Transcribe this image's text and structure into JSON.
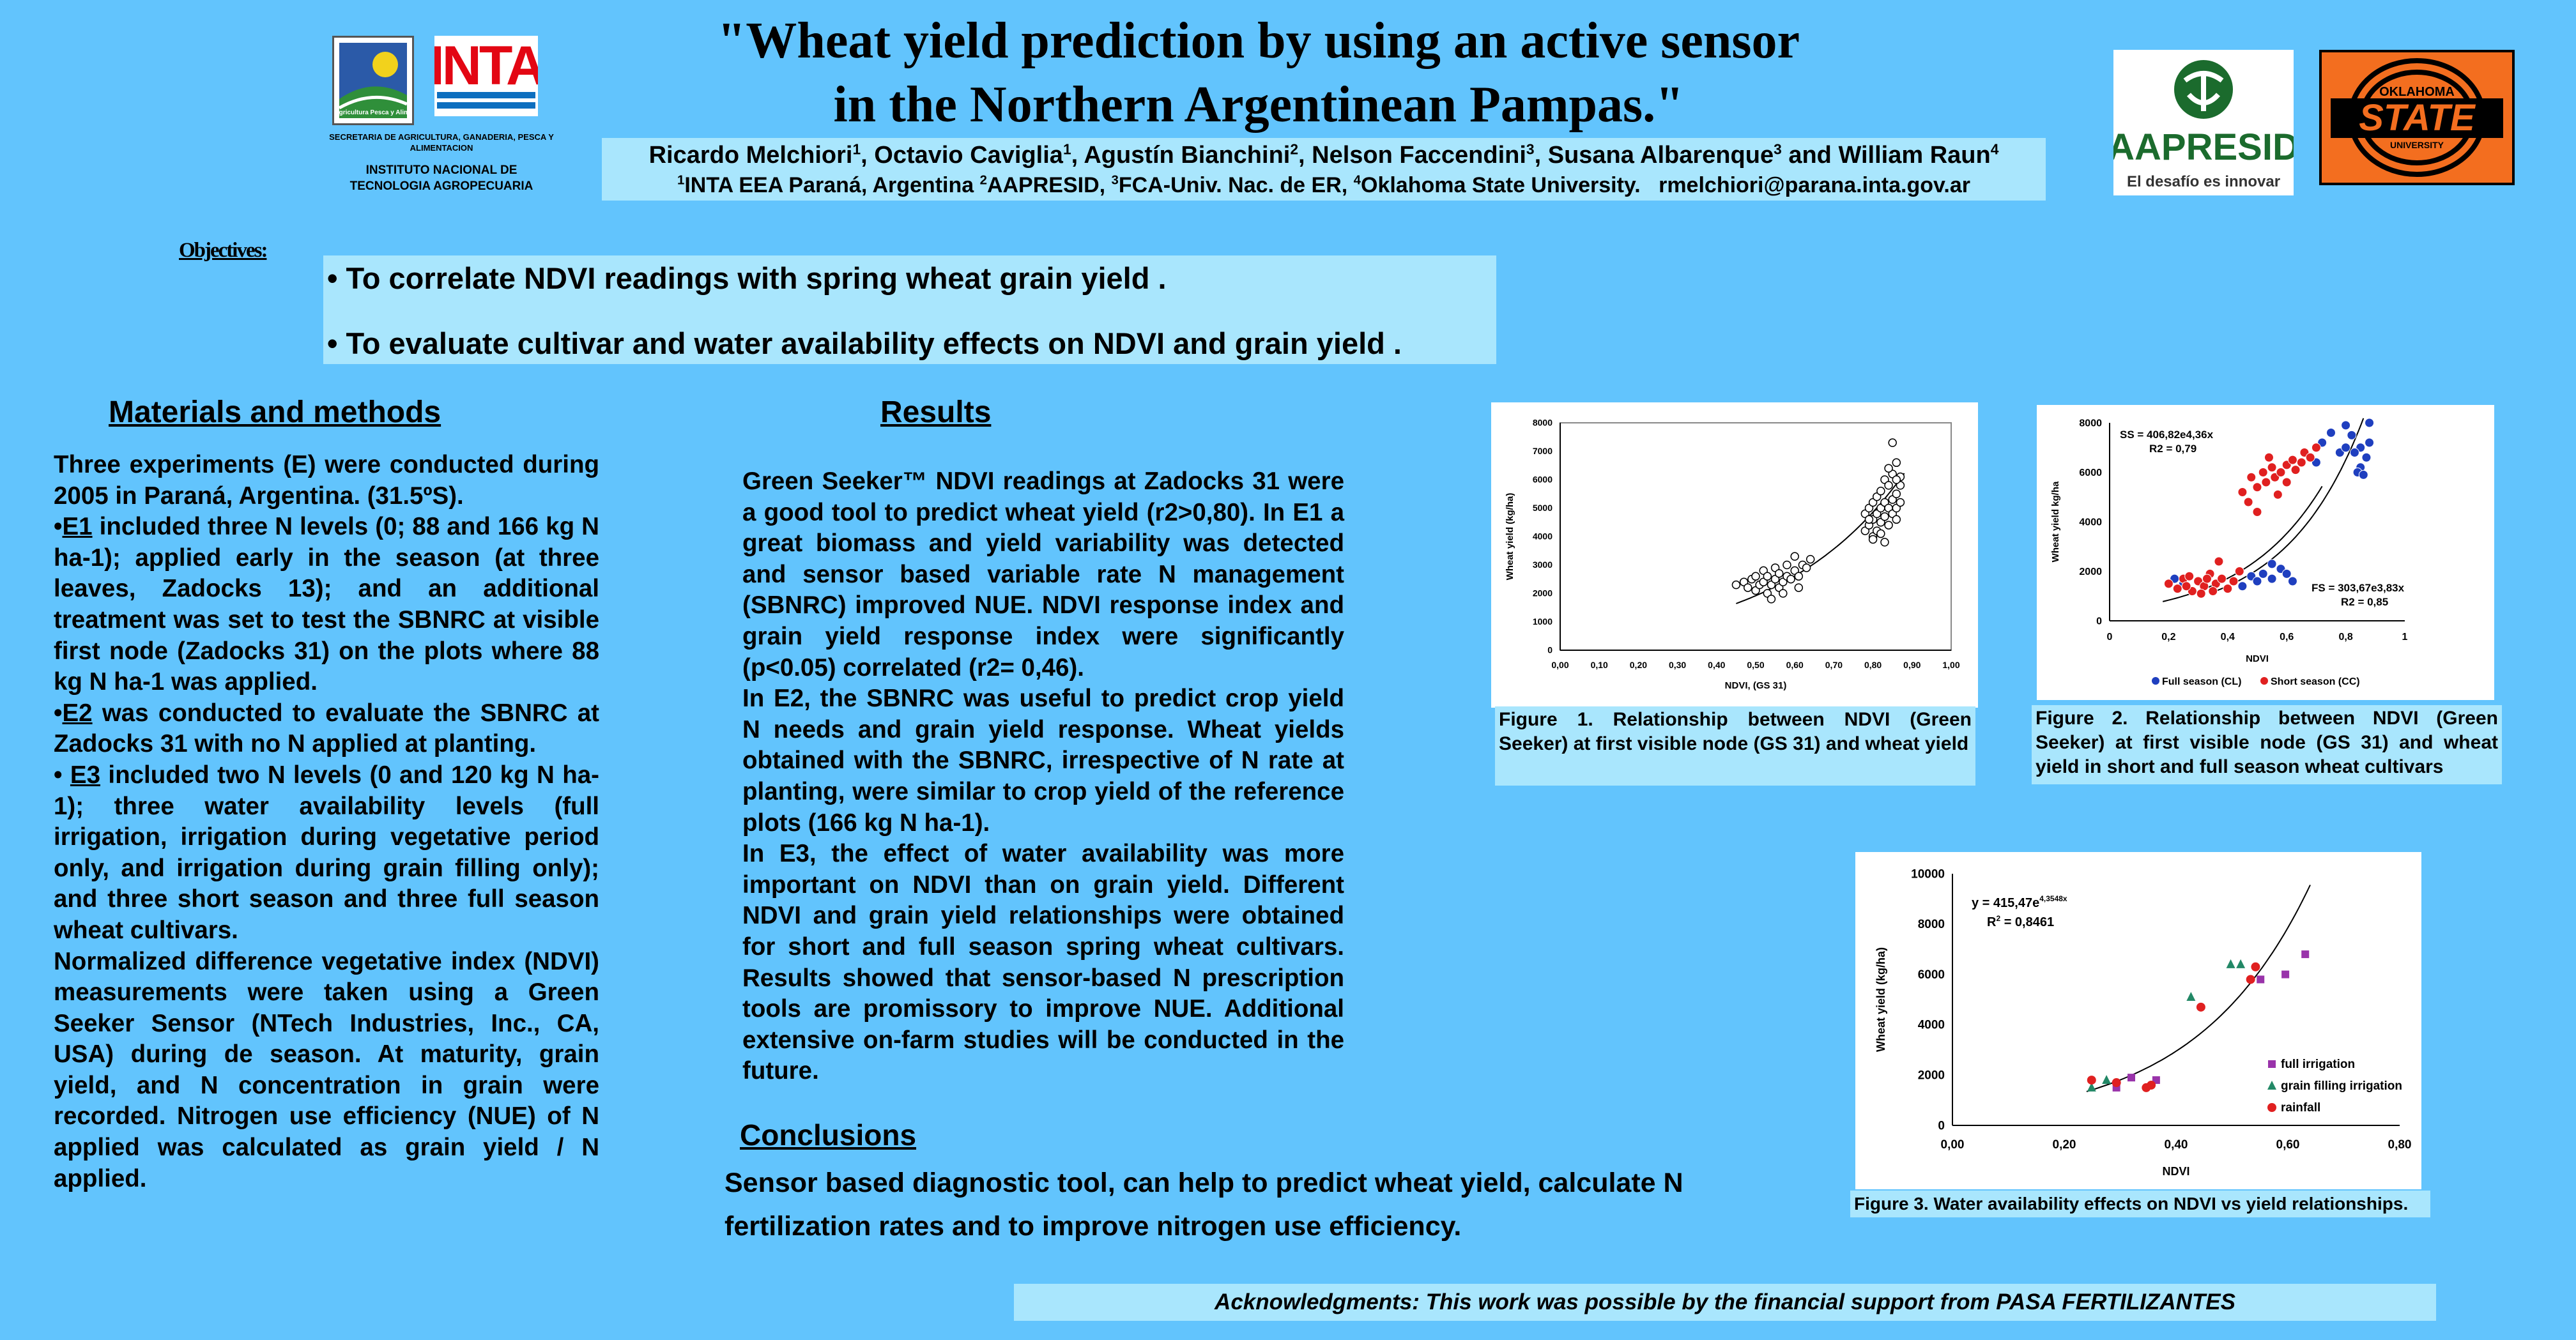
{
  "title": {
    "line1": "\"Wheat yield prediction by using an active sensor",
    "line2": "in the Northern Argentinean Pampas.\""
  },
  "authors": {
    "names": [
      {
        "name": "Ricardo Melchiori",
        "sup": "1"
      },
      {
        "name": "Octavio Caviglia",
        "sup": "1"
      },
      {
        "name": "Agustín Bianchini",
        "sup": "2"
      },
      {
        "name": "Nelson Faccendini",
        "sup": "3"
      },
      {
        "name": "Susana Albarenque",
        "sup": "3"
      },
      {
        "name": "William Raun",
        "sup": "4"
      }
    ],
    "and_word": "and",
    "affil_1": "INTA EEA Paraná, Argentina",
    "affil_2": "AAPRESID, ",
    "affil_3": "FCA-Univ. Nac. de ER, ",
    "affil_4": "Oklahoma State University.",
    "email": "rmelchiori@parana.inta.gov.ar"
  },
  "logos": {
    "secretaria_text": "SECRETARIA DE AGRICULTURA, GANADERIA, PESCA Y ALIMENTACION",
    "inta_name": "INTA",
    "inta_full_1": "INSTITUTO NACIONAL DE",
    "inta_full_2": "TECNOLOGIA AGROPECUARIA",
    "aapresid_name": "AAPRESID",
    "aapresid_tagline": "El desafío es innovar",
    "osu_top": "OKLAHOMA",
    "osu_mid": "STATE",
    "osu_bottom": "UNIVERSITY",
    "sagpya_text": "Sec. Agricultura Pesca y Alimentos"
  },
  "objectives": {
    "label": "Objectives:",
    "items": [
      "To correlate NDVI readings with spring wheat grain yield .",
      "To evaluate cultivar and water availability effects on NDVI and grain yield ."
    ]
  },
  "materials": {
    "heading": "Materials and methods",
    "p1": "Three experiments (E) were conducted during 2005 in Paraná, Argentina. (31.5ºS).",
    "e1_label": "E1",
    "e1_text": " included three N levels (0; 88 and 166 kg N ha-1); applied early in the season (at three leaves, Zadocks 13); and an additional treatment was set to test the SBNRC at visible first node (Zadocks 31) on the plots where 88 kg N ha-1 was applied.",
    "e2_label": "E2",
    "e2_text": " was conducted to evaluate the SBNRC at Zadocks 31 with no N applied at planting.",
    "e3_label": "E3",
    "e3_text": " included two N levels (0 and 120 kg N ha-1); three water availability levels (full irrigation, irrigation during vegetative period only, and irrigation during grain filling only); and three short season and three full season wheat cultivars.",
    "p_last": "Normalized difference vegetative index (NDVI) measurements were taken using a Green Seeker Sensor (NTech Industries, Inc., CA, USA) during de season. At maturity, grain yield, and N concentration in grain were recorded. Nitrogen use efficiency (NUE) of N applied was calculated as grain yield / N applied."
  },
  "results": {
    "heading": "Results",
    "p1": "Green Seeker™ NDVI readings at Zadocks 31 were a good tool to predict wheat yield (r2>0,80). In E1 a great biomass and yield variability was detected and sensor based variable rate N management (SBNRC) improved NUE. NDVI response index and grain yield response index were significantly (p<0.05) correlated (r2= 0,46).",
    "p2": "In E2, the SBNRC was useful to predict crop yield N needs and grain yield response. Wheat yields obtained with the SBNRC, irrespective of N rate at planting, were similar to crop yield of the reference plots (166 kg N ha-1).",
    "p3": "In E3, the effect of water availability was more important on NDVI than on grain yield. Different NDVI and grain yield relationships were obtained for short and full season spring wheat cultivars. Results showed that sensor-based N prescription tools are promissory to improve NUE. Additional extensive on-farm studies will be conducted in the future."
  },
  "conclusions": {
    "heading": "Conclusions",
    "text": "Sensor based diagnostic tool, can help to predict wheat yield, calculate N fertilization rates and to improve nitrogen use efficiency."
  },
  "acknowledgments": "Acknowledgments: This work was possible by the financial support from PASA FERTILIZANTES",
  "chart_data": [
    {
      "type": "scatter",
      "title": "",
      "xlabel": "NDVI, (GS 31)",
      "ylabel": "Wheat yield (kg/ha)",
      "xlim": [
        0,
        1
      ],
      "ylim": [
        0,
        8000
      ],
      "xticks": [
        "0,00",
        "0,10",
        "0,20",
        "0,30",
        "0,40",
        "0,50",
        "0,60",
        "0,70",
        "0,80",
        "0,90",
        "1,00"
      ],
      "yticks": [
        "0",
        "1000",
        "2000",
        "3000",
        "4000",
        "5000",
        "6000",
        "7000",
        "8000"
      ],
      "grid": false,
      "caption": "Figure 1. Relationship between NDVI (Green Seeker) at first visible node (GS 31) and wheat yield",
      "points": [
        [
          0.45,
          2300
        ],
        [
          0.47,
          2400
        ],
        [
          0.48,
          2200
        ],
        [
          0.49,
          2500
        ],
        [
          0.5,
          2100
        ],
        [
          0.5,
          2600
        ],
        [
          0.51,
          2300
        ],
        [
          0.52,
          2800
        ],
        [
          0.52,
          2400
        ],
        [
          0.53,
          2000
        ],
        [
          0.53,
          2600
        ],
        [
          0.54,
          2300
        ],
        [
          0.55,
          2500
        ],
        [
          0.55,
          2900
        ],
        [
          0.56,
          2700
        ],
        [
          0.56,
          2200
        ],
        [
          0.57,
          2400
        ],
        [
          0.58,
          2600
        ],
        [
          0.58,
          3000
        ],
        [
          0.59,
          2500
        ],
        [
          0.6,
          2800
        ],
        [
          0.6,
          3300
        ],
        [
          0.61,
          2600
        ],
        [
          0.62,
          3000
        ],
        [
          0.63,
          2900
        ],
        [
          0.64,
          3200
        ],
        [
          0.54,
          1800
        ],
        [
          0.57,
          2000
        ],
        [
          0.61,
          2200
        ],
        [
          0.78,
          4200
        ],
        [
          0.78,
          4800
        ],
        [
          0.79,
          5000
        ],
        [
          0.79,
          4400
        ],
        [
          0.8,
          4600
        ],
        [
          0.8,
          5200
        ],
        [
          0.8,
          4000
        ],
        [
          0.81,
          4800
        ],
        [
          0.81,
          5400
        ],
        [
          0.81,
          4200
        ],
        [
          0.82,
          5000
        ],
        [
          0.82,
          4500
        ],
        [
          0.82,
          5600
        ],
        [
          0.83,
          4700
        ],
        [
          0.83,
          5200
        ],
        [
          0.83,
          3800
        ],
        [
          0.83,
          6000
        ],
        [
          0.84,
          5000
        ],
        [
          0.84,
          4400
        ],
        [
          0.84,
          5800
        ],
        [
          0.85,
          5300
        ],
        [
          0.85,
          4800
        ],
        [
          0.85,
          6200
        ],
        [
          0.85,
          7300
        ],
        [
          0.86,
          5500
        ],
        [
          0.86,
          5000
        ],
        [
          0.86,
          4600
        ],
        [
          0.86,
          6600
        ],
        [
          0.87,
          5200
        ],
        [
          0.87,
          5800
        ],
        [
          0.87,
          6100
        ],
        [
          0.82,
          4100
        ],
        [
          0.8,
          3900
        ],
        [
          0.84,
          6400
        ],
        [
          0.86,
          6000
        ],
        [
          0.79,
          4600
        ]
      ],
      "trend": {
        "a": 406.82,
        "b": 3.1
      }
    },
    {
      "type": "scatter",
      "title": "",
      "xlabel": "NDVI",
      "ylabel": "Wheat yield kg/ha",
      "xlim": [
        0,
        1
      ],
      "ylim": [
        0,
        8000
      ],
      "xticks": [
        "0",
        "0,2",
        "0,4",
        "0,6",
        "0,8",
        "1"
      ],
      "yticks": [
        "0",
        "2000",
        "4000",
        "6000",
        "8000"
      ],
      "grid": false,
      "legend_position": "bottom",
      "caption": "Figure 2. Relationship between NDVI (Green Seeker) at first visible node (GS 31) and wheat yield in short and full season wheat cultivars",
      "annotations": [
        {
          "text": "SS = 406,82e4,36x",
          "near": "top-left"
        },
        {
          "text": "R2 = 0,79",
          "near": "top-left"
        },
        {
          "text": "FS = 303,67e3,83x",
          "near": "bottom-right"
        },
        {
          "text": "R2 = 0,85",
          "near": "bottom-right"
        }
      ],
      "series": [
        {
          "name": "Full season  (CL)",
          "color": "#1f3fbf",
          "points": [
            [
              0.22,
              1700
            ],
            [
              0.25,
              1500
            ],
            [
              0.3,
              1600
            ],
            [
              0.45,
              1400
            ],
            [
              0.48,
              1800
            ],
            [
              0.5,
              1600
            ],
            [
              0.52,
              1900
            ],
            [
              0.55,
              1700
            ],
            [
              0.58,
              2100
            ],
            [
              0.6,
              1900
            ],
            [
              0.62,
              1600
            ],
            [
              0.55,
              2300
            ],
            [
              0.7,
              6400
            ],
            [
              0.72,
              7200
            ],
            [
              0.75,
              7600
            ],
            [
              0.78,
              6800
            ],
            [
              0.8,
              7900
            ],
            [
              0.82,
              7500
            ],
            [
              0.85,
              6200
            ],
            [
              0.85,
              7000
            ],
            [
              0.83,
              6800
            ],
            [
              0.87,
              6600
            ],
            [
              0.88,
              7200
            ],
            [
              0.84,
              6000
            ],
            [
              0.86,
              5900
            ],
            [
              0.88,
              8000
            ],
            [
              0.8,
              7000
            ]
          ]
        },
        {
          "name": "Short season (CC)",
          "color": "#e02020",
          "points": [
            [
              0.2,
              1500
            ],
            [
              0.23,
              1300
            ],
            [
              0.25,
              1700
            ],
            [
              0.28,
              1200
            ],
            [
              0.3,
              1600
            ],
            [
              0.32,
              1400
            ],
            [
              0.34,
              1900
            ],
            [
              0.36,
              1500
            ],
            [
              0.38,
              1700
            ],
            [
              0.4,
              1300
            ],
            [
              0.27,
              1800
            ],
            [
              0.31,
              1100
            ],
            [
              0.35,
              1200
            ],
            [
              0.42,
              1600
            ],
            [
              0.44,
              2000
            ],
            [
              0.26,
              1400
            ],
            [
              0.33,
              1700
            ],
            [
              0.37,
              2400
            ],
            [
              0.45,
              5200
            ],
            [
              0.47,
              4800
            ],
            [
              0.48,
              5800
            ],
            [
              0.5,
              5400
            ],
            [
              0.52,
              6000
            ],
            [
              0.53,
              5600
            ],
            [
              0.55,
              6200
            ],
            [
              0.56,
              5800
            ],
            [
              0.58,
              6000
            ],
            [
              0.6,
              6300
            ],
            [
              0.62,
              6500
            ],
            [
              0.63,
              6100
            ],
            [
              0.65,
              6400
            ],
            [
              0.66,
              6800
            ],
            [
              0.68,
              6600
            ],
            [
              0.7,
              7000
            ],
            [
              0.6,
              5600
            ],
            [
              0.57,
              5100
            ],
            [
              0.5,
              4400
            ],
            [
              0.54,
              6600
            ]
          ]
        }
      ]
    },
    {
      "type": "scatter",
      "title": "",
      "xlabel": "NDVI",
      "ylabel": "Wheat yield (kg/ha)",
      "xlim": [
        0,
        0.9
      ],
      "ylim": [
        0,
        10000
      ],
      "xticks": [
        "0,00",
        "0,20",
        "0,40",
        "0,60",
        "0,80"
      ],
      "yticks": [
        "0",
        "2000",
        "4000",
        "6000",
        "8000",
        "10000"
      ],
      "grid": false,
      "legend_position": "bottom-right",
      "caption": "Figure 3. Water availability effects on NDVI vs yield relationships.",
      "annotations": [
        {
          "text": "y = 415,47e",
          "sup": "4,3548x"
        },
        {
          "text": "R",
          "sup": "2",
          "rest": " = 0,8461"
        }
      ],
      "series": [
        {
          "name": "full irrigation",
          "color": "#9933aa",
          "marker": "square",
          "points": [
            [
              0.33,
              1500
            ],
            [
              0.36,
              1900
            ],
            [
              0.41,
              1800
            ],
            [
              0.62,
              5800
            ],
            [
              0.67,
              6000
            ],
            [
              0.71,
              6800
            ]
          ]
        },
        {
          "name": "grain filling irrigation",
          "color": "#228866",
          "marker": "triangle",
          "points": [
            [
              0.28,
              1500
            ],
            [
              0.31,
              1800
            ],
            [
              0.48,
              5100
            ],
            [
              0.56,
              6400
            ],
            [
              0.58,
              6400
            ]
          ]
        },
        {
          "name": "rainfall",
          "color": "#e02020",
          "marker": "circle",
          "points": [
            [
              0.28,
              1800
            ],
            [
              0.33,
              1700
            ],
            [
              0.39,
              1500
            ],
            [
              0.4,
              1600
            ],
            [
              0.5,
              4700
            ],
            [
              0.6,
              5800
            ],
            [
              0.61,
              6300
            ]
          ]
        }
      ],
      "trend": {
        "a": 415.47,
        "b": 4.3548
      }
    }
  ]
}
